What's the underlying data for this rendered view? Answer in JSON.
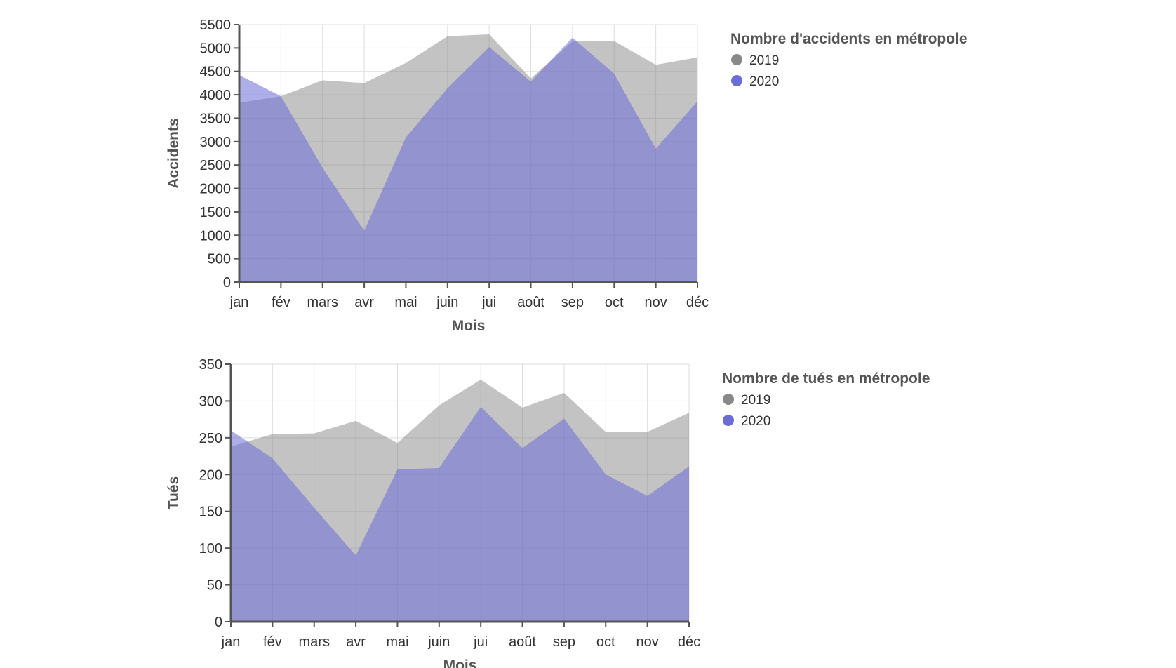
{
  "chart_data": [
    {
      "type": "area",
      "xlabel": "Mois",
      "ylabel": "Accidents",
      "categories": [
        "jan",
        "fév",
        "mars",
        "avr",
        "mai",
        "juin",
        "jui",
        "août",
        "sep",
        "oct",
        "nov",
        "déc"
      ],
      "ylim": [
        0,
        5500
      ],
      "yticks": [
        0,
        500,
        1000,
        1500,
        2000,
        2500,
        3000,
        3500,
        4000,
        4500,
        5000,
        5500
      ],
      "grid": true,
      "legend": {
        "title": "Nombre d'accidents en métropole",
        "placement": "right",
        "entries": [
          "2019",
          "2020"
        ]
      },
      "series": [
        {
          "name": "2019",
          "color": "#888888",
          "values": [
            3830,
            3970,
            4310,
            4250,
            4680,
            5250,
            5290,
            4350,
            5140,
            5150,
            4640,
            4800
          ]
        },
        {
          "name": "2020",
          "color": "#6c6cd8",
          "values": [
            4420,
            3970,
            2440,
            1100,
            3090,
            4140,
            5020,
            4280,
            5220,
            4450,
            2850,
            3860
          ]
        }
      ]
    },
    {
      "type": "area",
      "xlabel": "Mois",
      "ylabel": "Tués",
      "categories": [
        "jan",
        "fév",
        "mars",
        "avr",
        "mai",
        "juin",
        "jui",
        "août",
        "sep",
        "oct",
        "nov",
        "déc"
      ],
      "ylim": [
        0,
        350
      ],
      "yticks": [
        0,
        50,
        100,
        150,
        200,
        250,
        300,
        350
      ],
      "grid": true,
      "legend": {
        "title": "Nombre de tués en métropole",
        "placement": "right",
        "entries": [
          "2019",
          "2020"
        ]
      },
      "series": [
        {
          "name": "2019",
          "color": "#888888",
          "values": [
            238,
            255,
            256,
            273,
            243,
            294,
            329,
            291,
            311,
            258,
            258,
            284
          ]
        },
        {
          "name": "2020",
          "color": "#6c6cd8",
          "values": [
            260,
            222,
            155,
            90,
            207,
            209,
            292,
            236,
            276,
            200,
            171,
            211
          ]
        }
      ]
    }
  ]
}
